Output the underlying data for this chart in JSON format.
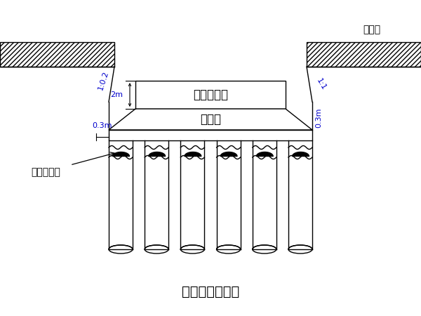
{
  "title": "基坑开挖示意图",
  "title_fontsize": 14,
  "label_fontsize": 11,
  "ann_fontsize": 8,
  "bg_color": "#ffffff",
  "lc": "#000000",
  "ann_color": "#0000cc",
  "text_box": "框构桥基础",
  "text_sand": "沙垫层",
  "text_pile": "水泥搞拌档",
  "text_ground": "原地面",
  "dim_03m": "0.3m",
  "dim_2m": "2m",
  "dim_02": "1:0.2",
  "dim_03": "0.3m",
  "dim_11": "1:1"
}
